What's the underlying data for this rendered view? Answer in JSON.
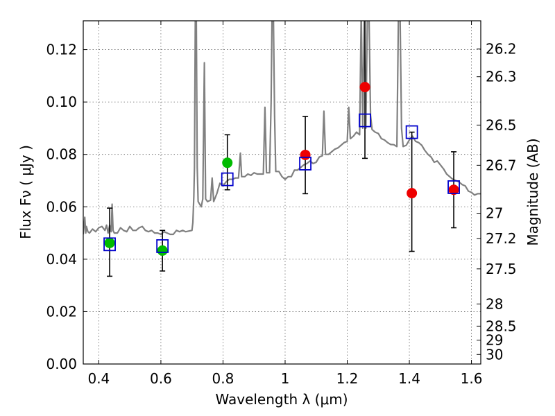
{
  "chart_data": {
    "type": "scatter",
    "xlabel": "Wavelength  λ (μm)",
    "ylabel": "Flux  Fν  ( μJy )",
    "ylabel_right": "Magnitude (AB)",
    "xlim": [
      0.35,
      1.63
    ],
    "ylim": [
      0.0,
      0.131
    ],
    "grid": true,
    "x_ticks": [
      0.4,
      0.6,
      0.8,
      1.0,
      1.2,
      1.4,
      1.6
    ],
    "x_tick_labels": [
      "0.4",
      "0.6",
      "0.8",
      "1",
      "1.2",
      "1.4",
      "1.6"
    ],
    "y_ticks": [
      0.0,
      0.02,
      0.04,
      0.06,
      0.08,
      0.1,
      0.12
    ],
    "y_tick_labels": [
      "0.00",
      "0.02",
      "0.04",
      "0.06",
      "0.08",
      "0.10",
      "0.12"
    ],
    "right_ticks": [
      26.2,
      26.3,
      26.5,
      26.7,
      27.0,
      27.2,
      27.5,
      28.0,
      28.5,
      29.0,
      30.0
    ],
    "right_tick_labels": [
      "26.2",
      "26.3",
      "26.5",
      "26.7",
      "27",
      "27.2",
      "27.5",
      "28",
      "28.5",
      "29",
      "30"
    ],
    "colors": {
      "spectrum": "#808080",
      "model_box": "#0000cc",
      "green_points": "#00bb00",
      "red_points": "#ee0000",
      "errorbar": "#000000",
      "grid": "#666666"
    },
    "series": [
      {
        "kind": "model_spectrum",
        "points": [
          [
            0.35,
            0.0495
          ],
          [
            0.355,
            0.056
          ],
          [
            0.358,
            0.05
          ],
          [
            0.36,
            0.0525
          ],
          [
            0.365,
            0.0505
          ],
          [
            0.37,
            0.05
          ],
          [
            0.38,
            0.0515
          ],
          [
            0.39,
            0.0505
          ],
          [
            0.4,
            0.052
          ],
          [
            0.41,
            0.0525
          ],
          [
            0.42,
            0.051
          ],
          [
            0.425,
            0.053
          ],
          [
            0.43,
            0.05
          ],
          [
            0.435,
            0.053
          ],
          [
            0.44,
            0.0505
          ],
          [
            0.443,
            0.061
          ],
          [
            0.446,
            0.051
          ],
          [
            0.45,
            0.05
          ],
          [
            0.46,
            0.05
          ],
          [
            0.47,
            0.052
          ],
          [
            0.48,
            0.051
          ],
          [
            0.49,
            0.0505
          ],
          [
            0.5,
            0.0525
          ],
          [
            0.51,
            0.051
          ],
          [
            0.52,
            0.051
          ],
          [
            0.53,
            0.052
          ],
          [
            0.54,
            0.0525
          ],
          [
            0.55,
            0.051
          ],
          [
            0.56,
            0.0505
          ],
          [
            0.57,
            0.051
          ],
          [
            0.58,
            0.05
          ],
          [
            0.59,
            0.05
          ],
          [
            0.6,
            0.0495
          ],
          [
            0.61,
            0.0505
          ],
          [
            0.62,
            0.05
          ],
          [
            0.63,
            0.0495
          ],
          [
            0.64,
            0.0495
          ],
          [
            0.65,
            0.051
          ],
          [
            0.66,
            0.0505
          ],
          [
            0.67,
            0.051
          ],
          [
            0.68,
            0.0505
          ],
          [
            0.7,
            0.051
          ],
          [
            0.703,
            0.054
          ],
          [
            0.706,
            0.064
          ],
          [
            0.708,
            0.075
          ],
          [
            0.711,
            0.135
          ],
          [
            0.714,
            0.135
          ],
          [
            0.717,
            0.075
          ],
          [
            0.72,
            0.062
          ],
          [
            0.73,
            0.06
          ],
          [
            0.735,
            0.063
          ],
          [
            0.74,
            0.115
          ],
          [
            0.744,
            0.063
          ],
          [
            0.75,
            0.062
          ],
          [
            0.76,
            0.0625
          ],
          [
            0.765,
            0.071
          ],
          [
            0.77,
            0.062
          ],
          [
            0.78,
            0.065
          ],
          [
            0.79,
            0.069
          ],
          [
            0.8,
            0.068
          ],
          [
            0.81,
            0.0695
          ],
          [
            0.82,
            0.0705
          ],
          [
            0.83,
            0.0705
          ],
          [
            0.84,
            0.071
          ],
          [
            0.85,
            0.071
          ],
          [
            0.856,
            0.0805
          ],
          [
            0.86,
            0.0715
          ],
          [
            0.87,
            0.0715
          ],
          [
            0.88,
            0.0725
          ],
          [
            0.89,
            0.072
          ],
          [
            0.9,
            0.073
          ],
          [
            0.91,
            0.0725
          ],
          [
            0.92,
            0.0725
          ],
          [
            0.93,
            0.0725
          ],
          [
            0.935,
            0.098
          ],
          [
            0.94,
            0.073
          ],
          [
            0.95,
            0.073
          ],
          [
            0.955,
            0.1
          ],
          [
            0.958,
            0.135
          ],
          [
            0.962,
            0.135
          ],
          [
            0.966,
            0.095
          ],
          [
            0.97,
            0.0735
          ],
          [
            0.98,
            0.0735
          ],
          [
            0.99,
            0.0715
          ],
          [
            1.0,
            0.0705
          ],
          [
            1.01,
            0.0715
          ],
          [
            1.02,
            0.0715
          ],
          [
            1.03,
            0.074
          ],
          [
            1.04,
            0.074
          ],
          [
            1.05,
            0.075
          ],
          [
            1.06,
            0.076
          ],
          [
            1.07,
            0.0765
          ],
          [
            1.08,
            0.0775
          ],
          [
            1.09,
            0.0765
          ],
          [
            1.1,
            0.077
          ],
          [
            1.11,
            0.079
          ],
          [
            1.12,
            0.0795
          ],
          [
            1.125,
            0.0965
          ],
          [
            1.13,
            0.08
          ],
          [
            1.14,
            0.08
          ],
          [
            1.15,
            0.081
          ],
          [
            1.16,
            0.082
          ],
          [
            1.17,
            0.0825
          ],
          [
            1.18,
            0.0835
          ],
          [
            1.19,
            0.0845
          ],
          [
            1.2,
            0.085
          ],
          [
            1.205,
            0.098
          ],
          [
            1.21,
            0.086
          ],
          [
            1.22,
            0.087
          ],
          [
            1.23,
            0.0885
          ],
          [
            1.24,
            0.0875
          ],
          [
            1.245,
            0.135
          ],
          [
            1.25,
            0.09
          ],
          [
            1.255,
            0.135
          ],
          [
            1.26,
            0.09
          ],
          [
            1.265,
            0.135
          ],
          [
            1.27,
            0.135
          ],
          [
            1.275,
            0.095
          ],
          [
            1.28,
            0.0895
          ],
          [
            1.29,
            0.0885
          ],
          [
            1.3,
            0.088
          ],
          [
            1.31,
            0.086
          ],
          [
            1.32,
            0.0855
          ],
          [
            1.33,
            0.0845
          ],
          [
            1.34,
            0.0838
          ],
          [
            1.35,
            0.0837
          ],
          [
            1.36,
            0.083
          ],
          [
            1.365,
            0.135
          ],
          [
            1.37,
            0.135
          ],
          [
            1.375,
            0.09
          ],
          [
            1.38,
            0.083
          ],
          [
            1.39,
            0.0835
          ],
          [
            1.4,
            0.0855
          ],
          [
            1.41,
            0.087
          ],
          [
            1.42,
            0.085
          ],
          [
            1.43,
            0.0845
          ],
          [
            1.44,
            0.0835
          ],
          [
            1.45,
            0.0815
          ],
          [
            1.46,
            0.08
          ],
          [
            1.47,
            0.079
          ],
          [
            1.48,
            0.077
          ],
          [
            1.49,
            0.0775
          ],
          [
            1.5,
            0.076
          ],
          [
            1.51,
            0.0745
          ],
          [
            1.52,
            0.0725
          ],
          [
            1.53,
            0.0715
          ],
          [
            1.54,
            0.0705
          ],
          [
            1.55,
            0.07
          ],
          [
            1.56,
            0.0695
          ],
          [
            1.57,
            0.0685
          ],
          [
            1.58,
            0.068
          ],
          [
            1.59,
            0.066
          ],
          [
            1.6,
            0.0655
          ],
          [
            1.61,
            0.0645
          ],
          [
            1.62,
            0.065
          ],
          [
            1.63,
            0.065
          ]
        ]
      },
      {
        "kind": "model_photometry",
        "marker": "open-square",
        "points": [
          [
            0.435,
            0.0457
          ],
          [
            0.605,
            0.045
          ],
          [
            0.814,
            0.0705
          ],
          [
            1.065,
            0.0765
          ],
          [
            1.257,
            0.093
          ],
          [
            1.408,
            0.0885
          ],
          [
            1.543,
            0.0675
          ]
        ]
      },
      {
        "kind": "observed",
        "marker": "filled-circle",
        "points": [
          {
            "x": 0.435,
            "y": 0.0462,
            "ylo": 0.0335,
            "yhi": 0.0595,
            "color": "green"
          },
          {
            "x": 0.605,
            "y": 0.0433,
            "ylo": 0.0355,
            "yhi": 0.051,
            "color": "green"
          },
          {
            "x": 0.814,
            "y": 0.0768,
            "ylo": 0.0665,
            "yhi": 0.0875,
            "color": "green"
          },
          {
            "x": 1.065,
            "y": 0.0798,
            "ylo": 0.065,
            "yhi": 0.0945,
            "color": "red"
          },
          {
            "x": 1.257,
            "y": 0.1057,
            "ylo": 0.0785,
            "yhi": 0.133,
            "color": "red"
          },
          {
            "x": 1.408,
            "y": 0.0652,
            "ylo": 0.043,
            "yhi": 0.0885,
            "color": "red"
          },
          {
            "x": 1.543,
            "y": 0.0665,
            "ylo": 0.052,
            "yhi": 0.081,
            "color": "red"
          }
        ]
      }
    ]
  }
}
